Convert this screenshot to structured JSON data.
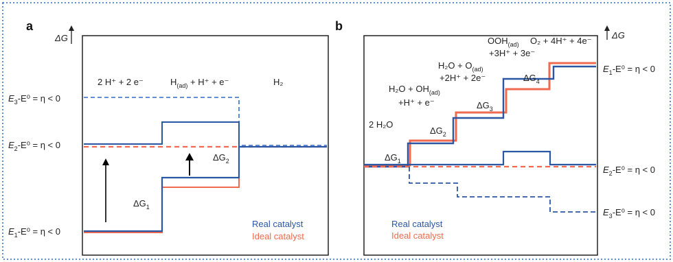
{
  "colors": {
    "real": "#2b56a3",
    "ideal": "#ef6a4e",
    "dashed_blue": "#4d7fd0",
    "frame": "#5b8fd6"
  },
  "panel_a": {
    "letter": "a",
    "y_axis_label": "ΔG",
    "states": {
      "s1": "2 H⁺ + 2 e⁻",
      "s2_main": "H",
      "s2_sub": "(ad)",
      "s2_rest": " + H⁺ + e⁻",
      "s3": "H₂"
    },
    "levels": {
      "e3_left": "E",
      "e3_sub": "3",
      "e3_rest": "-E⁰ = η < 0",
      "e2_left": "E",
      "e2_sub": "2",
      "e2_rest": "-E⁰ = η < 0",
      "e1_left": "E",
      "e1_sub": "1",
      "e1_rest": "-E⁰ = η < 0"
    },
    "dg1": {
      "main": "ΔG",
      "sub": "1"
    },
    "dg2": {
      "main": "ΔG",
      "sub": "2"
    },
    "legend": {
      "real": "Real catalyst",
      "ideal": "Ideal catalyst"
    }
  },
  "panel_b": {
    "letter": "b",
    "y_axis_label": "ΔG",
    "states": {
      "s0": "2 H₂O",
      "s1_a": "H₂O + OH",
      "s1_sub": "(ad)",
      "s1_b": "+H⁺ + e⁻",
      "s2_a": "H₂O + O",
      "s2_sub": "(ad)",
      "s2_b": "+2H⁺ + 2e⁻",
      "s3_a": "OOH",
      "s3_sub": "(ad)",
      "s3_b": "+3H⁺ + 3e⁻",
      "s4": "O₂ + 4H⁺ + 4e⁻"
    },
    "dg": {
      "main": "ΔG",
      "sub1": "1",
      "sub2": "2",
      "sub3": "3",
      "sub4": "4"
    },
    "levels": {
      "e1_left": "E",
      "e1_sub": "1",
      "e1_rest": "-E⁰ = η < 0",
      "e2_left": "E",
      "e2_sub": "2",
      "e2_rest": "-E⁰ = η < 0",
      "e3_left": "E",
      "e3_sub": "3",
      "e3_rest": "-E⁰ = η < 0"
    },
    "legend": {
      "real": "Real catalyst",
      "ideal": "Ideal catalyst"
    }
  }
}
